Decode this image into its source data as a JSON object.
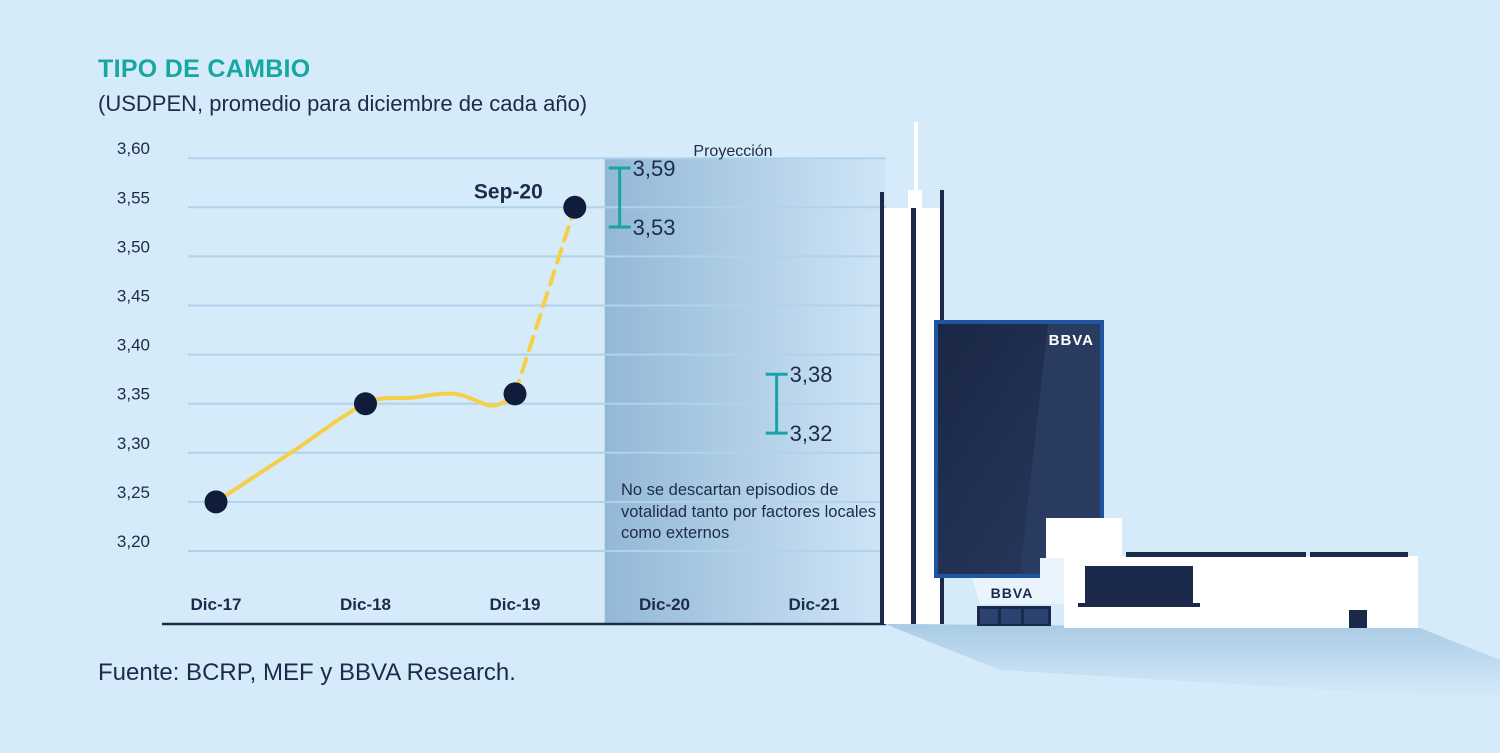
{
  "header": {
    "title": "TIPO DE CAMBIO",
    "subtitle": "(USDPEN, promedio para diciembre de cada año)"
  },
  "source": "Fuente: BCRP, MEF y BBVA Research.",
  "projection": {
    "label": "Proyección",
    "note": "No se descartan episodios de votalidad tanto por factores locales como externos"
  },
  "illustration": {
    "logo_text_top": "BBVA",
    "logo_text_bottom": "BBVA"
  },
  "colors": {
    "background": "#d6ebfa",
    "title": "#17a7a0",
    "line": "#f5cf47",
    "marker": "#0f1d3a",
    "range": "#1aa3a6",
    "grid": "#b0d2ea",
    "projection_band_start": "#93b8d6",
    "projection_band_end": "#cfe5f7",
    "building_dark": "#1b2a4a"
  },
  "chart_data": {
    "type": "line",
    "title": "TIPO DE CAMBIO",
    "subtitle": "(USDPEN, promedio para diciembre de cada año)",
    "y_ticks": [
      "3,20",
      "3,25",
      "3,30",
      "3,35",
      "3,40",
      "3,45",
      "3,50",
      "3,55",
      "3,60"
    ],
    "ylim": [
      3.2,
      3.6
    ],
    "categories": [
      "Dic-17",
      "Dic-18",
      "Dic-19",
      "Dic-20",
      "Dic-21"
    ],
    "x_positions": [
      0,
      1,
      2,
      3,
      4
    ],
    "series": [
      {
        "style": "solid",
        "points": [
          {
            "x": 0,
            "y": 3.25
          },
          {
            "x": 0.5,
            "y": 3.3
          },
          {
            "x": 1,
            "y": 3.35
          },
          {
            "x": 1.3,
            "y": 3.356
          },
          {
            "x": 1.6,
            "y": 3.36
          },
          {
            "x": 1.85,
            "y": 3.348
          },
          {
            "x": 2,
            "y": 3.36
          }
        ],
        "markers": [
          {
            "x": 0,
            "y": 3.25
          },
          {
            "x": 1,
            "y": 3.35
          },
          {
            "x": 2,
            "y": 3.36
          }
        ]
      },
      {
        "style": "dashed",
        "points": [
          {
            "x": 2,
            "y": 3.36
          },
          {
            "x": 2.4,
            "y": 3.55
          }
        ],
        "markers": [
          {
            "x": 2.4,
            "y": 3.55
          }
        ]
      }
    ],
    "annotations": [
      {
        "text": "Sep-20",
        "x": 2.4,
        "y": 3.55
      }
    ],
    "projection_start": 2.6,
    "ranges": [
      {
        "x": 2.7,
        "low": 3.53,
        "high": 3.59,
        "low_label": "3,53",
        "high_label": "3,59"
      },
      {
        "x": 3.75,
        "low": 3.32,
        "high": 3.38,
        "low_label": "3,32",
        "high_label": "3,38"
      }
    ],
    "grid": true,
    "legend": "none"
  }
}
